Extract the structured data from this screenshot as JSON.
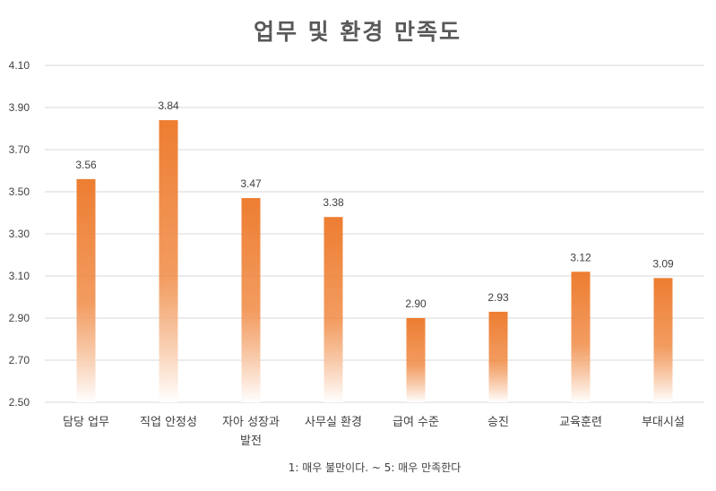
{
  "chart_data": {
    "type": "bar",
    "title": "업무 및 환경 만족도",
    "note": "1: 매우 불만이다. ~ 5: 매우 만족한다",
    "categories": [
      [
        "담당 업무"
      ],
      [
        "직업 안정성"
      ],
      [
        "자아 성장과",
        "발전"
      ],
      [
        "사무실 환경"
      ],
      [
        "급여 수준"
      ],
      [
        "승진"
      ],
      [
        "교육훈련"
      ],
      [
        "부대시설"
      ]
    ],
    "values": [
      3.56,
      3.84,
      3.47,
      3.38,
      2.9,
      2.93,
      3.12,
      3.09
    ],
    "value_labels": [
      "3.56",
      "3.84",
      "3.47",
      "3.38",
      "2.90",
      "2.93",
      "3.12",
      "3.09"
    ],
    "ylim": [
      2.5,
      4.1
    ],
    "yticks": [
      2.5,
      2.7,
      2.9,
      3.1,
      3.3,
      3.5,
      3.7,
      3.9,
      4.1
    ],
    "ytick_labels": [
      "2.50",
      "2.70",
      "2.90",
      "3.10",
      "3.30",
      "3.50",
      "3.70",
      "3.90",
      "4.10"
    ],
    "grid": true,
    "legend": "none",
    "bar_color": "#ed7d31"
  }
}
